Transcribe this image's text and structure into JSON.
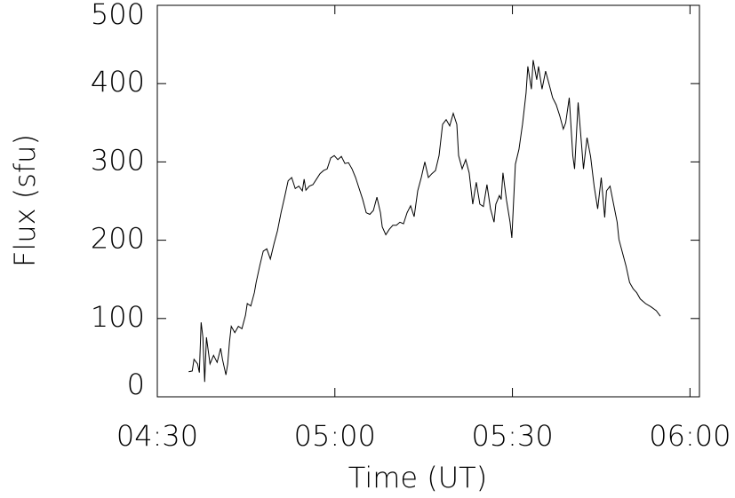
{
  "chart_data": {
    "type": "line",
    "color": "#000000",
    "xlabel": "Time (UT)",
    "ylabel": "Flux (sfu)",
    "x": [
      275.3,
      275.9,
      276.2,
      276.8,
      277.1,
      277.4,
      277.7,
      278.0,
      278.3,
      278.9,
      279.5,
      280.1,
      280.7,
      281.0,
      281.6,
      281.9,
      282.2,
      282.5,
      283.1,
      283.7,
      284.3,
      284.9,
      285.2,
      285.8,
      286.4,
      286.7,
      287.3,
      287.9,
      288.5,
      289.1,
      289.7,
      290.3,
      290.9,
      291.5,
      292.1,
      292.7,
      293.3,
      293.9,
      294.5,
      294.8,
      295.1,
      295.7,
      296.3,
      296.9,
      297.5,
      298.1,
      298.7,
      299.3,
      299.9,
      300.5,
      301.1,
      301.7,
      302.3,
      302.9,
      303.5,
      304.1,
      304.7,
      305.3,
      305.9,
      306.5,
      307.1,
      307.7,
      308.0,
      308.6,
      309.2,
      309.8,
      310.4,
      311.0,
      311.6,
      312.2,
      312.8,
      313.4,
      314.0,
      314.6,
      315.2,
      315.8,
      316.4,
      317.0,
      317.6,
      318.2,
      318.8,
      319.4,
      320.0,
      320.6,
      320.9,
      321.5,
      322.1,
      322.7,
      323.3,
      323.9,
      324.5,
      325.1,
      325.7,
      326.3,
      326.9,
      327.2,
      327.8,
      328.1,
      328.4,
      329.0,
      329.6,
      329.9,
      330.5,
      331.1,
      331.7,
      332.3,
      332.6,
      333.2,
      333.5,
      334.1,
      334.4,
      335.0,
      335.6,
      336.2,
      336.8,
      337.4,
      338.0,
      338.6,
      339.0,
      339.6,
      340.2,
      340.5,
      341.1,
      341.7,
      342.0,
      342.6,
      343.2,
      343.8,
      344.4,
      345.0,
      345.6,
      345.9,
      346.5,
      347.1,
      347.7,
      348.0,
      348.6,
      349.2,
      349.8,
      350.4,
      351.0,
      351.6,
      352.5,
      353.4,
      354.3,
      355.0
    ],
    "values": [
      32,
      33,
      48,
      42,
      31,
      95,
      76,
      19,
      76,
      42,
      53,
      44,
      62,
      48,
      28,
      42,
      70,
      90,
      82,
      90,
      87,
      104,
      119,
      116,
      133,
      146,
      167,
      186,
      189,
      176,
      195,
      212,
      235,
      255,
      276,
      280,
      266,
      269,
      263,
      278,
      264,
      269,
      271,
      278,
      285,
      289,
      291,
      305,
      308,
      303,
      307,
      298,
      299,
      291,
      280,
      266,
      252,
      235,
      233,
      238,
      255,
      235,
      217,
      207,
      214,
      219,
      219,
      223,
      221,
      235,
      244,
      230,
      263,
      280,
      300,
      280,
      285,
      289,
      308,
      348,
      354,
      346,
      362,
      348,
      308,
      291,
      303,
      286,
      246,
      274,
      246,
      243,
      271,
      240,
      223,
      246,
      257,
      252,
      286,
      251,
      223,
      203,
      297,
      316,
      348,
      388,
      422,
      393,
      430,
      405,
      422,
      393,
      416,
      399,
      382,
      373,
      359,
      342,
      350,
      382,
      308,
      291,
      376,
      320,
      291,
      331,
      307,
      269,
      240,
      280,
      229,
      263,
      269,
      246,
      223,
      201,
      184,
      167,
      146,
      138,
      133,
      125,
      119,
      115,
      110,
      103
    ],
    "xlim": [
      270,
      361.6
    ],
    "ylim": [
      0,
      500
    ],
    "xticks": [
      {
        "value": 270,
        "label": "04:30"
      },
      {
        "value": 300,
        "label": "05:00"
      },
      {
        "value": 330,
        "label": "05:30"
      },
      {
        "value": 360,
        "label": "06:00"
      }
    ],
    "yticks": [
      0,
      100,
      200,
      300,
      400,
      500
    ]
  }
}
